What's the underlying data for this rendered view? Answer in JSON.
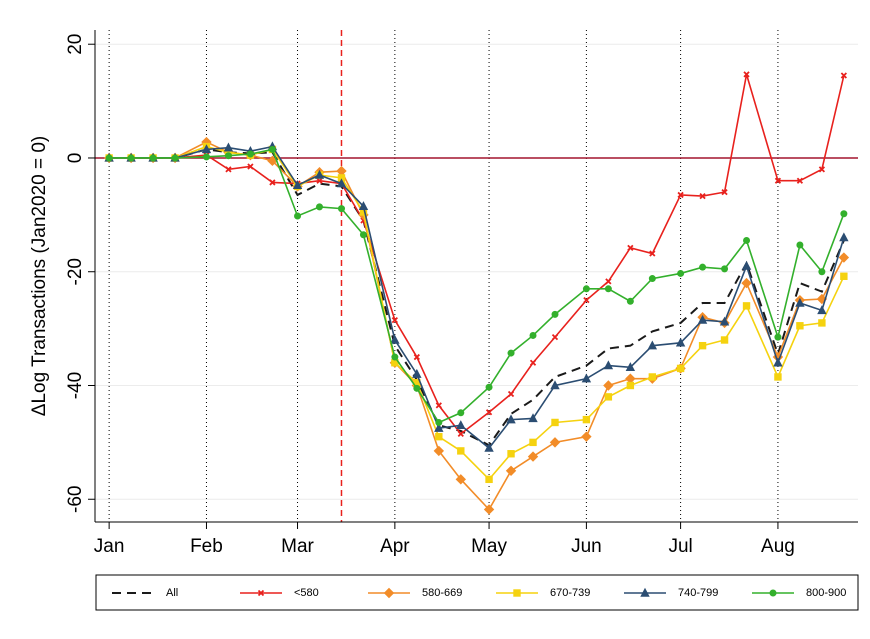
{
  "chart_data": {
    "type": "line",
    "y_label": "ΔLog Transactions (Jan2020 = 0)",
    "x": [
      0,
      7,
      14,
      21,
      31,
      38,
      45,
      52,
      60,
      67,
      74,
      81,
      91,
      98,
      105,
      112,
      121,
      128,
      135,
      142,
      152,
      159,
      166,
      173,
      182,
      189,
      196,
      203,
      213,
      220,
      227,
      234
    ],
    "xlim": [
      -4.5,
      238.5
    ],
    "xticks": [
      {
        "value": 0,
        "label": "Jan"
      },
      {
        "value": 31,
        "label": "Feb"
      },
      {
        "value": 60,
        "label": "Mar"
      },
      {
        "value": 91,
        "label": "Apr"
      },
      {
        "value": 121,
        "label": "May"
      },
      {
        "value": 152,
        "label": "Jun"
      },
      {
        "value": 182,
        "label": "Jul"
      },
      {
        "value": 213,
        "label": "Aug"
      }
    ],
    "ylim": [
      -64,
      22.5
    ],
    "yticks": [
      -60,
      -40,
      -20,
      0,
      20
    ],
    "grid": true,
    "hline": 0,
    "hline_color": "#a3152e",
    "vline": 74,
    "vline_color": "#e8211d",
    "legend": "bottom",
    "series": [
      {
        "name": "All",
        "color": "#1a1a1a",
        "style": "dashed",
        "marker": "none",
        "values": [
          0,
          0,
          0,
          0,
          1.5,
          1,
          0.8,
          1,
          -6.5,
          -4.5,
          -5,
          -11,
          -33,
          -39,
          -47,
          -48,
          -50.5,
          -45,
          -42.5,
          -38.5,
          -36.5,
          -33.5,
          -33,
          -30.5,
          -29,
          -25.5,
          -25.5,
          -18.5,
          -34.5,
          -22,
          -23.5,
          -14.5
        ]
      },
      {
        "name": "<580",
        "color": "#e8211d",
        "style": "solid",
        "marker": "x",
        "values": [
          0,
          0,
          0,
          0,
          0.5,
          -2,
          -1.5,
          -4.3,
          -4.5,
          -4,
          -4.5,
          -11,
          -28.5,
          -35,
          -43.5,
          -48.5,
          -44.7,
          -41.5,
          -36,
          -31.5,
          -25,
          -21.7,
          -15.8,
          -16.8,
          -6.5,
          -6.7,
          -6,
          14.7,
          -4,
          -4,
          -2,
          14.5
        ]
      },
      {
        "name": "580-669",
        "color": "#f28c28",
        "style": "solid",
        "marker": "diamond",
        "values": [
          0,
          0,
          0,
          0,
          2.8,
          1,
          0.5,
          -0.5,
          -5,
          -2.5,
          -2.3,
          -10,
          -36,
          -40,
          -51.5,
          -56.5,
          -61.8,
          -55,
          -52.5,
          -50,
          -49,
          -40,
          -38.8,
          -38.8,
          -37,
          -28,
          -29,
          -22,
          -35,
          -25,
          -24.8,
          -17.5
        ]
      },
      {
        "name": "670-739",
        "color": "#f5d20f",
        "style": "solid",
        "marker": "square",
        "values": [
          0,
          0,
          0,
          0,
          2,
          1,
          0.5,
          1.5,
          -5,
          -3,
          -3.5,
          -9.5,
          -36,
          -39.5,
          -49,
          -51.5,
          -56.5,
          -52,
          -50,
          -46.5,
          -46,
          -42,
          -40,
          -38.5,
          -37,
          -33,
          -32,
          -26,
          -38.5,
          -29.5,
          -29,
          -20.8
        ]
      },
      {
        "name": "740-799",
        "color": "#2b4d72",
        "style": "solid",
        "marker": "triangle",
        "values": [
          0,
          0,
          0,
          0,
          1.5,
          1.8,
          1.2,
          2,
          -4.8,
          -3,
          -4.5,
          -8.5,
          -32,
          -38,
          -47.5,
          -47,
          -51,
          -46,
          -45.8,
          -40,
          -38.8,
          -36.5,
          -36.8,
          -33,
          -32.5,
          -28.5,
          -28.8,
          -19,
          -36,
          -25.5,
          -26.8,
          -14
        ]
      },
      {
        "name": "800-900",
        "color": "#33b02c",
        "style": "solid",
        "marker": "circle",
        "values": [
          0,
          0,
          0,
          0,
          0.2,
          0.4,
          0.7,
          1.5,
          -10.2,
          -8.6,
          -8.9,
          -13.5,
          -35,
          -40.5,
          -46.5,
          -44.8,
          -40.3,
          -34.3,
          -31.2,
          -27.5,
          -23,
          -23,
          -25.2,
          -21.2,
          -20.3,
          -19.2,
          -19.5,
          -14.5,
          -31.5,
          -15.3,
          -20,
          -9.8
        ]
      }
    ]
  }
}
